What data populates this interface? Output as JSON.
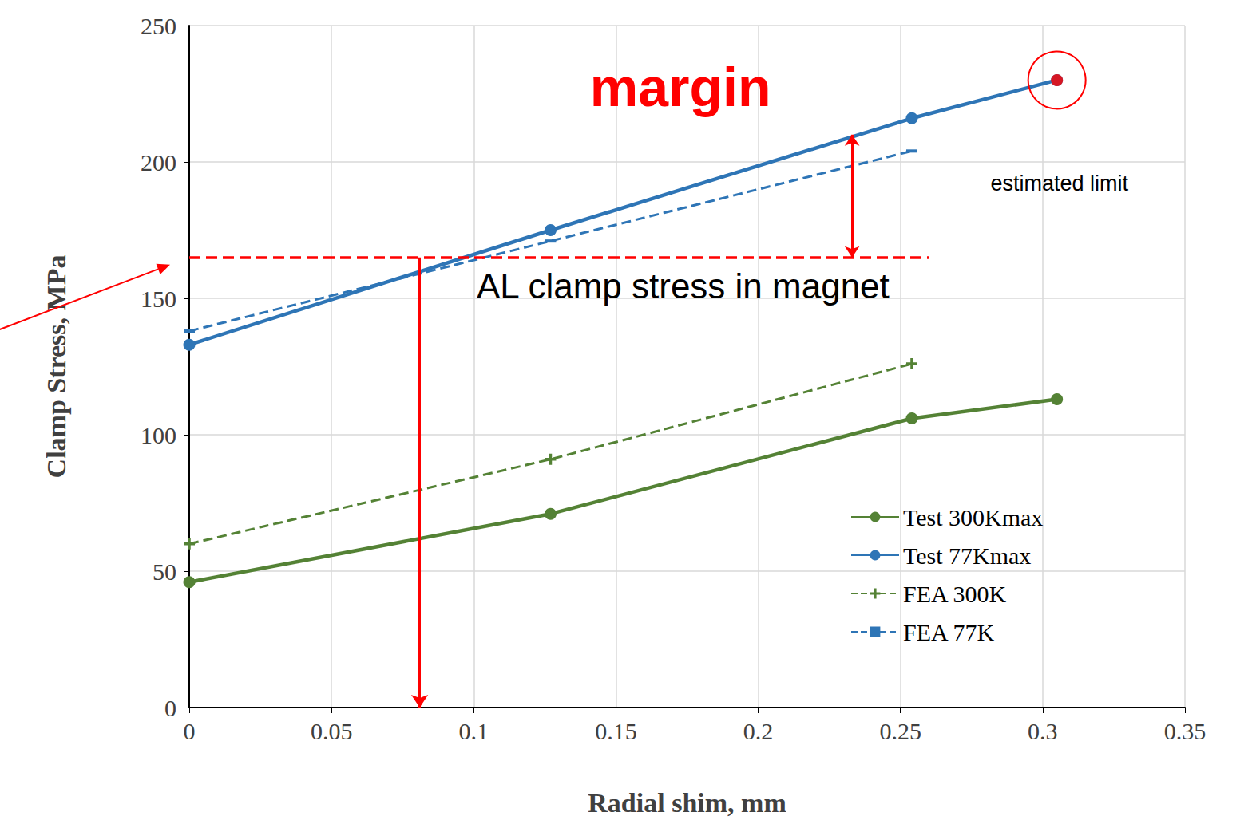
{
  "chart_data": {
    "type": "line",
    "xlabel": "Radial shim, mm",
    "ylabel": "Clamp Stress, MPa",
    "xlim": [
      0,
      0.35
    ],
    "xticks": [
      0,
      0.05,
      0.1,
      0.15,
      0.2,
      0.25,
      0.3,
      0.35
    ],
    "ylim": [
      0,
      250
    ],
    "yticks": [
      0,
      50,
      100,
      150,
      200,
      250
    ],
    "grid": true,
    "legend": "lower right",
    "series": [
      {
        "name": "Test 300Kmax",
        "color": "#548235",
        "line_style": "solid",
        "marker": "circle",
        "x": [
          0,
          0.127,
          0.254,
          0.305
        ],
        "values": [
          46,
          71,
          106,
          113
        ]
      },
      {
        "name": "Test 77Kmax",
        "color": "#2E75B6",
        "line_style": "solid",
        "marker": "circle",
        "x": [
          0,
          0.127,
          0.254,
          0.305
        ],
        "values": [
          133,
          175,
          216,
          230
        ]
      },
      {
        "name": "FEA 300K",
        "color": "#548235",
        "line_style": "dashed",
        "marker": "plus",
        "x": [
          0,
          0.127,
          0.254
        ],
        "values": [
          60,
          91,
          126
        ]
      },
      {
        "name": "FEA 77K",
        "color": "#2E75B6",
        "line_style": "dashed",
        "marker": "dash",
        "x": [
          0,
          0.127,
          0.254
        ],
        "values": [
          138,
          171,
          204
        ]
      }
    ],
    "reference_line": {
      "label": "AL clamp stress in magnet",
      "y": 165,
      "x_end": 0.26,
      "color": "#FF0000"
    },
    "drop_arrow": {
      "x": 0.081,
      "y_end": 0,
      "color": "#FF0000"
    },
    "margin": {
      "label": "margin",
      "x": 0.233,
      "y_top": 210,
      "color": "#FF0000"
    },
    "limit": {
      "label": "estimated limit",
      "x": 0.305,
      "y": 230,
      "color": "#FF0000"
    }
  }
}
